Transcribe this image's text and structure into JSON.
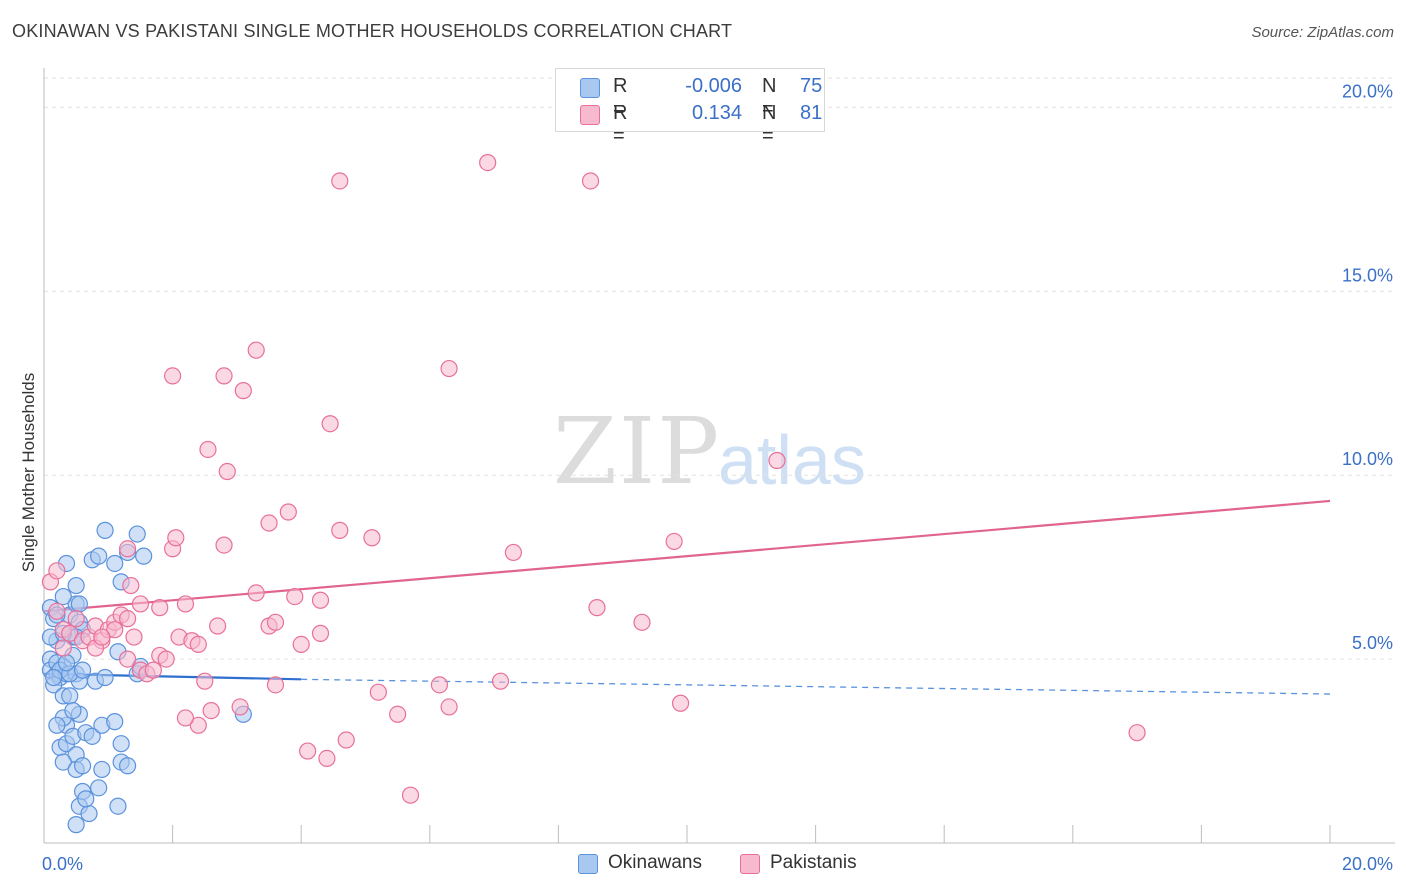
{
  "title": "OKINAWAN VS PAKISTANI SINGLE MOTHER HOUSEHOLDS CORRELATION CHART",
  "source": "Source: ZipAtlas.com",
  "watermark": {
    "zip": "ZIP",
    "atlas": "atlas"
  },
  "legend_top": {
    "rows": [
      {
        "r_label": "R =",
        "r_value": "-0.006",
        "n_label": "N =",
        "n_value": "75",
        "color": "#a9c8f0"
      },
      {
        "r_label": "R =",
        "r_value": "0.134",
        "n_label": "N =",
        "n_value": "81",
        "color": "#f7b9cd"
      }
    ]
  },
  "legend_bottom": {
    "items": [
      {
        "label": "Okinawans",
        "color": "#a9c8f0"
      },
      {
        "label": "Pakistanis",
        "color": "#f7b9cd"
      }
    ]
  },
  "chart_data": {
    "type": "scatter",
    "title": "OKINAWAN VS PAKISTANI SINGLE MOTHER HOUSEHOLDS CORRELATION CHART",
    "xlabel": "",
    "ylabel": "Single Mother Households",
    "xlim": [
      0,
      20
    ],
    "ylim": [
      0,
      20.8
    ],
    "x_tick_labels": [
      "0.0%",
      "20.0%"
    ],
    "y_ticks": [
      5,
      10,
      15,
      20
    ],
    "y_tick_labels": [
      "5.0%",
      "10.0%",
      "15.0%",
      "20.0%"
    ],
    "grid": true,
    "series": [
      {
        "name": "Okinawans",
        "color": "#5b92dd",
        "fill": "#a9c8f0",
        "r": -0.006,
        "n": 75,
        "trend": {
          "x0": 0,
          "y0": 4.6,
          "x1": 4.0,
          "y1": 4.45,
          "x_dash_end": 20,
          "y_dash_end": 4.05
        },
        "points": [
          [
            0.1,
            6.4
          ],
          [
            0.15,
            6.1
          ],
          [
            0.2,
            5.5
          ],
          [
            0.1,
            5.0
          ],
          [
            0.1,
            4.7
          ],
          [
            0.2,
            4.6
          ],
          [
            0.3,
            4.8
          ],
          [
            0.25,
            4.5
          ],
          [
            0.35,
            4.6
          ],
          [
            0.15,
            4.3
          ],
          [
            0.3,
            4.0
          ],
          [
            0.4,
            6.2
          ],
          [
            0.5,
            6.5
          ],
          [
            0.55,
            6.0
          ],
          [
            0.45,
            5.6
          ],
          [
            0.6,
            5.8
          ],
          [
            0.2,
            6.2
          ],
          [
            0.3,
            6.7
          ],
          [
            0.35,
            7.6
          ],
          [
            0.5,
            7.0
          ],
          [
            0.55,
            6.5
          ],
          [
            0.5,
            5.6
          ],
          [
            0.45,
            5.1
          ],
          [
            0.5,
            4.6
          ],
          [
            0.55,
            4.4
          ],
          [
            0.4,
            4.0
          ],
          [
            0.55,
            3.5
          ],
          [
            0.35,
            3.2
          ],
          [
            0.3,
            3.4
          ],
          [
            0.2,
            3.2
          ],
          [
            0.25,
            2.6
          ],
          [
            0.35,
            2.7
          ],
          [
            0.45,
            2.9
          ],
          [
            0.5,
            2.4
          ],
          [
            0.3,
            2.2
          ],
          [
            0.5,
            2.0
          ],
          [
            0.6,
            2.1
          ],
          [
            0.55,
            1.0
          ],
          [
            0.6,
            1.4
          ],
          [
            0.7,
            0.8
          ],
          [
            0.5,
            0.5
          ],
          [
            0.65,
            3.0
          ],
          [
            0.75,
            2.9
          ],
          [
            0.9,
            3.2
          ],
          [
            1.1,
            3.3
          ],
          [
            1.2,
            2.7
          ],
          [
            0.8,
            4.4
          ],
          [
            0.95,
            4.5
          ],
          [
            0.75,
            7.7
          ],
          [
            0.85,
            7.8
          ],
          [
            1.2,
            7.1
          ],
          [
            1.1,
            7.6
          ],
          [
            1.3,
            7.9
          ],
          [
            1.55,
            7.8
          ],
          [
            0.95,
            8.5
          ],
          [
            1.45,
            8.4
          ],
          [
            1.15,
            5.2
          ],
          [
            1.45,
            4.6
          ],
          [
            1.5,
            4.8
          ],
          [
            1.2,
            2.2
          ],
          [
            1.3,
            2.1
          ],
          [
            1.15,
            1.0
          ],
          [
            0.85,
            1.5
          ],
          [
            3.1,
            3.5
          ],
          [
            0.1,
            5.6
          ],
          [
            0.2,
            4.9
          ],
          [
            0.25,
            4.7
          ],
          [
            0.4,
            4.6
          ],
          [
            0.15,
            4.5
          ],
          [
            0.35,
            4.9
          ],
          [
            0.6,
            4.7
          ],
          [
            0.45,
            3.6
          ],
          [
            0.65,
            1.2
          ],
          [
            0.9,
            2.0
          ],
          [
            0.3,
            5.7
          ]
        ]
      },
      {
        "name": "Pakistanis",
        "color": "#e8709a",
        "fill": "#f7b9cd",
        "r": 0.134,
        "n": 81,
        "trend": {
          "x0": 0,
          "y0": 6.3,
          "x1": 20,
          "y1": 9.3
        },
        "points": [
          [
            0.1,
            7.1
          ],
          [
            0.2,
            6.3
          ],
          [
            0.3,
            5.8
          ],
          [
            0.4,
            5.7
          ],
          [
            0.6,
            5.5
          ],
          [
            0.7,
            5.6
          ],
          [
            0.8,
            5.9
          ],
          [
            0.9,
            5.5
          ],
          [
            1.0,
            5.8
          ],
          [
            1.1,
            6.0
          ],
          [
            1.2,
            6.2
          ],
          [
            1.3,
            6.1
          ],
          [
            1.4,
            5.6
          ],
          [
            1.3,
            5.0
          ],
          [
            1.5,
            4.7
          ],
          [
            1.6,
            4.6
          ],
          [
            1.7,
            4.7
          ],
          [
            1.8,
            5.1
          ],
          [
            1.9,
            5.0
          ],
          [
            2.0,
            8.0
          ],
          [
            2.05,
            8.3
          ],
          [
            2.1,
            5.6
          ],
          [
            2.2,
            6.5
          ],
          [
            2.3,
            5.5
          ],
          [
            2.4,
            5.4
          ],
          [
            2.5,
            4.4
          ],
          [
            2.6,
            3.6
          ],
          [
            2.7,
            5.9
          ],
          [
            2.8,
            8.1
          ],
          [
            2.85,
            10.1
          ],
          [
            2.55,
            10.7
          ],
          [
            2.4,
            3.2
          ],
          [
            3.05,
            3.7
          ],
          [
            3.3,
            6.8
          ],
          [
            3.5,
            5.9
          ],
          [
            3.6,
            6.0
          ],
          [
            3.5,
            8.7
          ],
          [
            3.8,
            9.0
          ],
          [
            3.6,
            4.3
          ],
          [
            3.9,
            6.7
          ],
          [
            4.0,
            5.4
          ],
          [
            4.1,
            2.5
          ],
          [
            4.3,
            5.7
          ],
          [
            4.3,
            6.6
          ],
          [
            4.4,
            2.3
          ],
          [
            4.6,
            8.5
          ],
          [
            4.7,
            2.8
          ],
          [
            4.45,
            11.4
          ],
          [
            5.1,
            8.3
          ],
          [
            5.2,
            4.1
          ],
          [
            5.5,
            3.5
          ],
          [
            6.3,
            3.7
          ],
          [
            6.15,
            4.3
          ],
          [
            5.7,
            1.3
          ],
          [
            6.3,
            12.9
          ],
          [
            6.9,
            18.5
          ],
          [
            7.1,
            4.4
          ],
          [
            7.3,
            7.9
          ],
          [
            8.5,
            18.0
          ],
          [
            8.6,
            6.4
          ],
          [
            9.3,
            6.0
          ],
          [
            9.8,
            8.2
          ],
          [
            9.9,
            3.8
          ],
          [
            11.4,
            10.4
          ],
          [
            17.0,
            3.0
          ],
          [
            4.6,
            18.0
          ],
          [
            3.3,
            13.4
          ],
          [
            2.0,
            12.7
          ],
          [
            2.8,
            12.7
          ],
          [
            3.1,
            12.3
          ],
          [
            1.3,
            8.0
          ],
          [
            1.35,
            7.0
          ],
          [
            1.5,
            6.5
          ],
          [
            1.8,
            6.4
          ],
          [
            0.3,
            5.3
          ],
          [
            0.5,
            6.1
          ],
          [
            0.8,
            5.3
          ],
          [
            2.2,
            3.4
          ],
          [
            0.2,
            7.4
          ],
          [
            1.1,
            5.8
          ],
          [
            0.9,
            5.6
          ]
        ]
      }
    ]
  }
}
